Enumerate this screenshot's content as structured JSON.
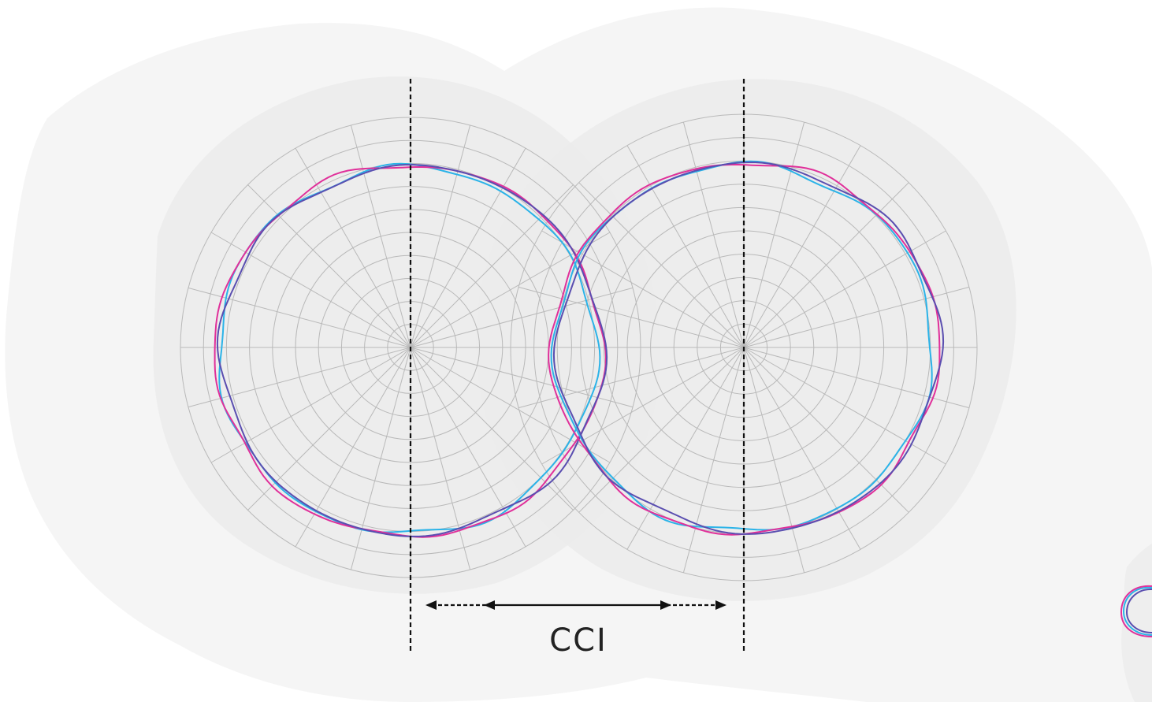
{
  "diagram": {
    "annotation_label": "CCI",
    "polar_grid": {
      "rings": 10,
      "spokes": 24
    },
    "traces": [
      {
        "color": "#2bb3e8"
      },
      {
        "color": "#e0309a"
      },
      {
        "color": "#5a4eb0"
      }
    ],
    "colors": {
      "grid": "#b9b9b9",
      "blob_outer": "#f5f5f5",
      "blob_inner": "#e4e4e4",
      "axis": "#111111",
      "arrow": "#111111"
    }
  }
}
